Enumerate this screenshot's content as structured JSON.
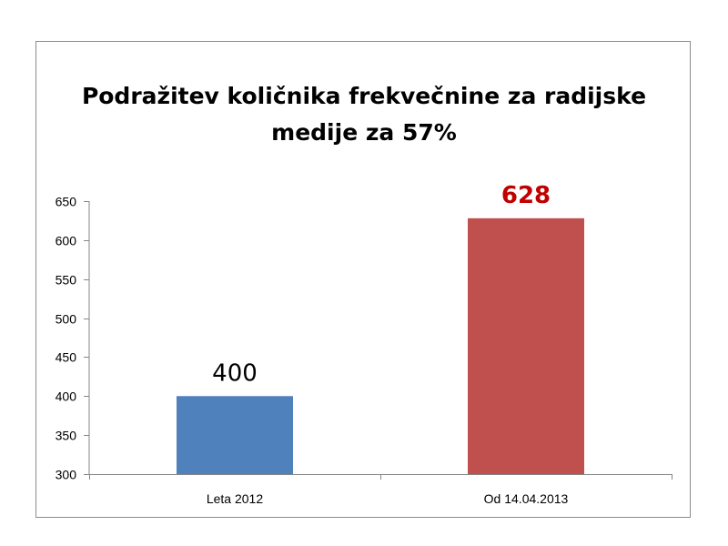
{
  "chart_data": {
    "type": "bar",
    "title_lines": [
      "Podražitev količnika frekvečnine za radijske",
      "medije za 57%"
    ],
    "categories": [
      "Leta 2012",
      "Od 14.04.2013"
    ],
    "values": [
      400,
      628
    ],
    "data_labels": [
      "400",
      "628"
    ],
    "bar_colors": [
      "#4f81bd",
      "#c0504d"
    ],
    "data_label_colors": [
      "#000000",
      "#c00000"
    ],
    "data_label_bold": [
      false,
      true
    ],
    "ylim": [
      300,
      650
    ],
    "yticks": [
      300,
      350,
      400,
      450,
      500,
      550,
      600,
      650
    ],
    "xlabel": "",
    "ylabel": "",
    "grid": false,
    "legend": "none"
  }
}
